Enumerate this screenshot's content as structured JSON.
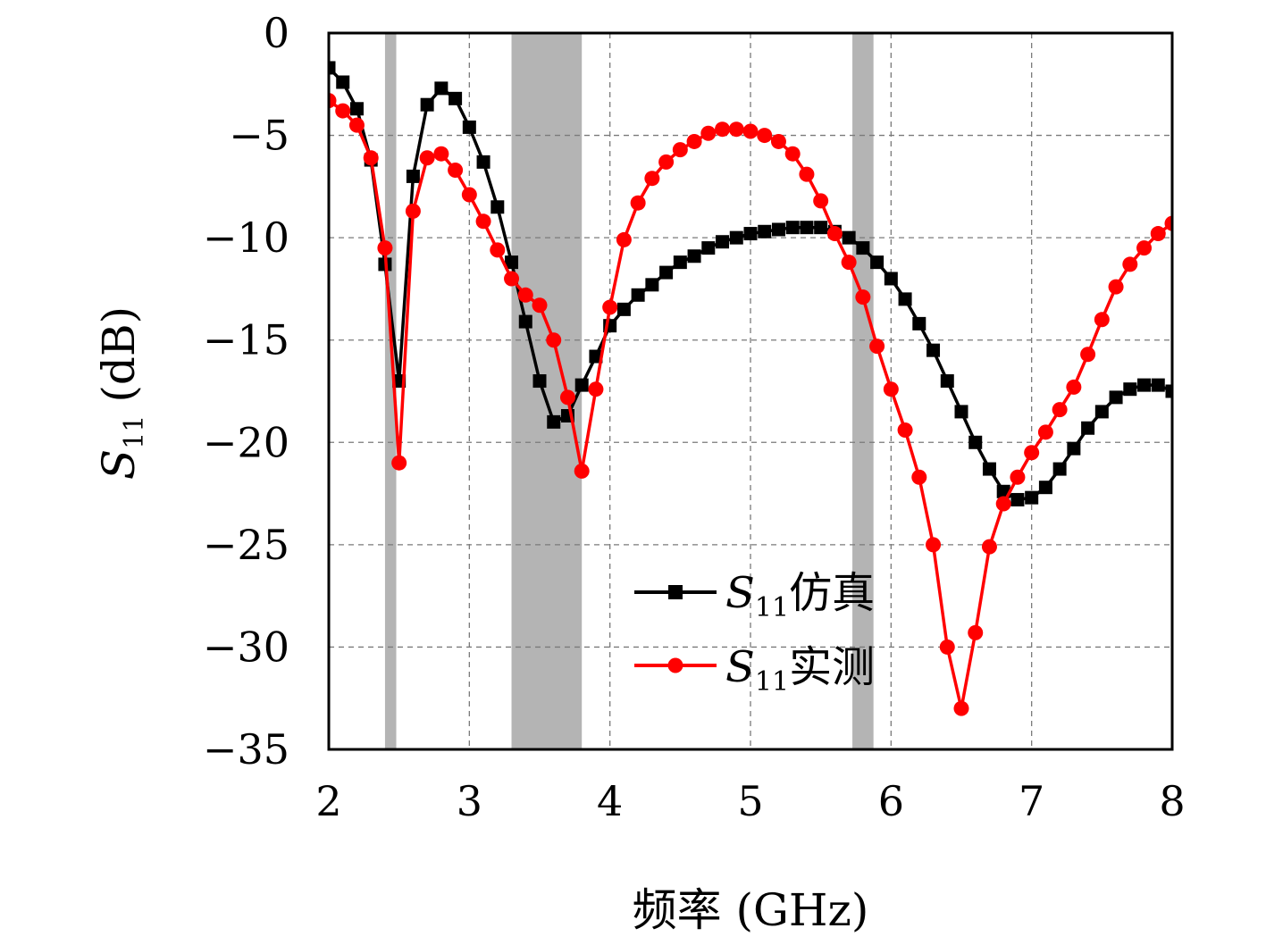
{
  "chart_data": {
    "type": "line",
    "xlabel": "频率 (GHz)",
    "ylabel": "S11 (dB)",
    "ylabel_main": "S",
    "ylabel_sub": "11",
    "ylabel_unit": "(dB)",
    "xlim": [
      2,
      8
    ],
    "ylim": [
      -35,
      0
    ],
    "x_ticks": [
      "2",
      "3",
      "4",
      "5",
      "6",
      "7",
      "8"
    ],
    "y_ticks": [
      "0",
      "−5",
      "−10",
      "−15",
      "−20",
      "−25",
      "−30",
      "−35"
    ],
    "grid": true,
    "legend_position": "bottom-right",
    "shaded_bands": [
      [
        2.4,
        2.48
      ],
      [
        3.3,
        3.8
      ],
      [
        5.725,
        5.875
      ]
    ],
    "colors": {
      "simulated": "#000000",
      "measured": "#ff0000",
      "band": "#b4b4b4"
    },
    "series": [
      {
        "name": "S11仿真",
        "name_main": "S",
        "name_sub": "11",
        "name_suffix": "仿真",
        "color": "#000000",
        "marker": "square",
        "x": [
          2.0,
          2.1,
          2.2,
          2.3,
          2.4,
          2.5,
          2.6,
          2.7,
          2.8,
          2.9,
          3.0,
          3.1,
          3.2,
          3.3,
          3.4,
          3.5,
          3.6,
          3.7,
          3.8,
          3.9,
          4.0,
          4.1,
          4.2,
          4.3,
          4.4,
          4.5,
          4.6,
          4.7,
          4.8,
          4.9,
          5.0,
          5.1,
          5.2,
          5.3,
          5.4,
          5.5,
          5.6,
          5.7,
          5.8,
          5.9,
          6.0,
          6.1,
          6.2,
          6.3,
          6.4,
          6.5,
          6.6,
          6.7,
          6.8,
          6.9,
          7.0,
          7.1,
          7.2,
          7.3,
          7.4,
          7.5,
          7.6,
          7.7,
          7.8,
          7.9,
          8.0
        ],
        "y": [
          -1.7,
          -2.4,
          -3.7,
          -6.2,
          -11.3,
          -17.0,
          -7.0,
          -3.5,
          -2.7,
          -3.2,
          -4.6,
          -6.3,
          -8.5,
          -11.2,
          -14.1,
          -17.0,
          -19.0,
          -18.7,
          -17.2,
          -15.8,
          -14.3,
          -13.5,
          -12.8,
          -12.3,
          -11.7,
          -11.2,
          -10.9,
          -10.5,
          -10.2,
          -10.0,
          -9.8,
          -9.7,
          -9.6,
          -9.5,
          -9.5,
          -9.5,
          -9.7,
          -10.0,
          -10.5,
          -11.2,
          -12.0,
          -13.0,
          -14.2,
          -15.5,
          -17.0,
          -18.5,
          -20.0,
          -21.3,
          -22.4,
          -22.8,
          -22.7,
          -22.2,
          -21.3,
          -20.3,
          -19.3,
          -18.5,
          -17.8,
          -17.4,
          -17.2,
          -17.2,
          -17.5
        ]
      },
      {
        "name": "S11实测",
        "name_main": "S",
        "name_sub": "11",
        "name_suffix": "实测",
        "color": "#ff0000",
        "marker": "circle",
        "x": [
          2.0,
          2.1,
          2.2,
          2.3,
          2.4,
          2.5,
          2.6,
          2.7,
          2.8,
          2.9,
          3.0,
          3.1,
          3.2,
          3.3,
          3.4,
          3.5,
          3.6,
          3.7,
          3.8,
          3.9,
          4.0,
          4.1,
          4.2,
          4.3,
          4.4,
          4.5,
          4.6,
          4.7,
          4.8,
          4.9,
          5.0,
          5.1,
          5.2,
          5.3,
          5.4,
          5.5,
          5.6,
          5.7,
          5.8,
          5.9,
          6.0,
          6.1,
          6.2,
          6.3,
          6.4,
          6.5,
          6.6,
          6.7,
          6.8,
          6.9,
          7.0,
          7.1,
          7.2,
          7.3,
          7.4,
          7.5,
          7.6,
          7.7,
          7.8,
          7.9,
          8.0
        ],
        "y": [
          -3.3,
          -3.8,
          -4.5,
          -6.1,
          -10.5,
          -21.0,
          -8.7,
          -6.1,
          -5.9,
          -6.7,
          -7.9,
          -9.2,
          -10.6,
          -12.0,
          -12.8,
          -13.3,
          -15.0,
          -17.8,
          -21.4,
          -17.4,
          -13.4,
          -10.1,
          -8.3,
          -7.1,
          -6.3,
          -5.7,
          -5.3,
          -4.9,
          -4.7,
          -4.7,
          -4.8,
          -5.0,
          -5.3,
          -5.9,
          -6.9,
          -8.2,
          -9.8,
          -11.2,
          -12.9,
          -15.3,
          -17.4,
          -19.4,
          -21.7,
          -25.0,
          -30.0,
          -33.0,
          -29.3,
          -25.1,
          -23.0,
          -21.7,
          -20.5,
          -19.5,
          -18.4,
          -17.3,
          -15.7,
          -14.0,
          -12.4,
          -11.3,
          -10.5,
          -9.8,
          -9.3
        ]
      }
    ]
  }
}
